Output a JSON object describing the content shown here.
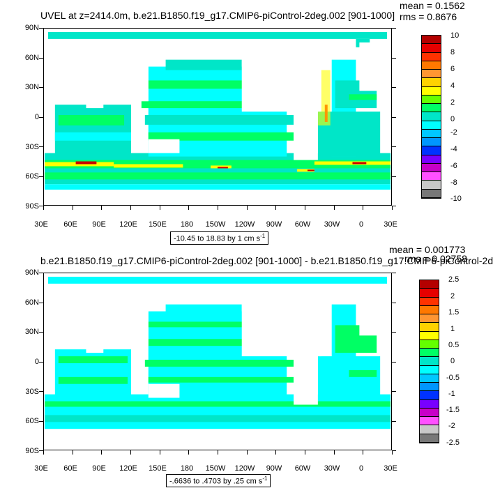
{
  "top_panel": {
    "title": "UVEL at z=2414.0m, b.e21.B1850.f19_g17.CMIP6-piControl-2deg.002 [901-1000]",
    "mean": "mean = 0.1562",
    "rms": "rms = 0.8676",
    "units_range": "-10.45 to 18.83 by 1 cm s",
    "units_exp": "-1",
    "colorbar_labels": [
      "10",
      "8",
      "6",
      "4",
      "2",
      "0",
      "-2",
      "-4",
      "-6",
      "-8",
      "-10"
    ]
  },
  "bottom_panel": {
    "title": "b.e21.B1850.f19_g17.CMIP6-piControl-2deg.002 [901-1000] - b.e21.B1850.f19_g17.CMIP6-piControl-2d",
    "mean": "mean = 0.001773",
    "rms": "rms = 0.02758",
    "units_range": "-.6636 to .4703 by .25 cm s",
    "units_exp": "-1",
    "colorbar_labels": [
      "2.5",
      "2",
      "1.5",
      "1",
      "0.5",
      "0",
      "-0.5",
      "-1",
      "-1.5",
      "-2",
      "-2.5"
    ]
  },
  "lat_labels": [
    "90N",
    "60N",
    "30N",
    "0",
    "30S",
    "60S",
    "90S"
  ],
  "lon_labels": [
    "30E",
    "60E",
    "90E",
    "120E",
    "150E",
    "180",
    "150W",
    "120W",
    "90W",
    "60W",
    "30W",
    "0",
    "30E"
  ],
  "colors": {
    "ocean_light": "#00ffff",
    "ocean_mid": "#00e6c8",
    "ocean_green": "#00ff64",
    "jet_yellow": "#ffff00",
    "jet_orange": "#ff9600",
    "jet_red": "#c80000",
    "colorbar": [
      "#b40000",
      "#e60000",
      "#ff3200",
      "#ff7800",
      "#ff9632",
      "#ffd200",
      "#ffff00",
      "#64ff00",
      "#00ff64",
      "#00e6c8",
      "#00ffff",
      "#00c8ff",
      "#0096ff",
      "#0032ff",
      "#7800ff",
      "#c800c8",
      "#ff50ff",
      "#c8c8c8",
      "#787878"
    ]
  }
}
